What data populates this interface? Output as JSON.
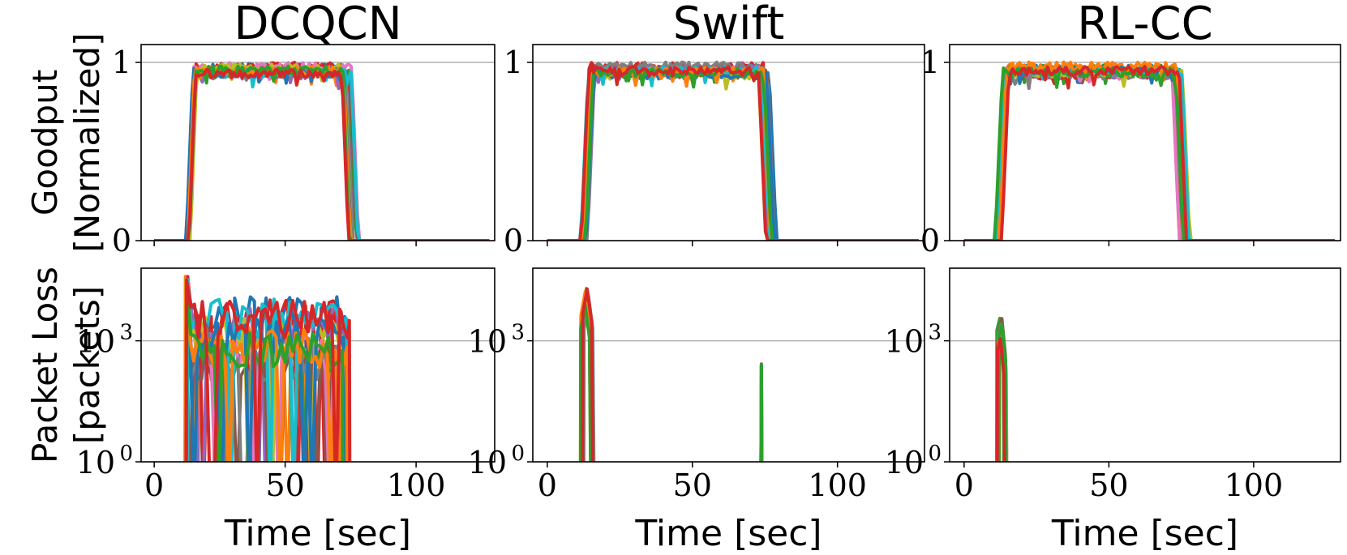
{
  "chart_data": [
    {
      "type": "line",
      "title": "DCQCN",
      "row": "goodput",
      "ylabel": [
        "Goodput",
        "[Normalized]"
      ],
      "xlabel": "",
      "ylim": [
        0,
        1.1
      ],
      "yticks": [
        {
          "label": "0",
          "value": 0
        },
        {
          "label": "1",
          "value": 1
        }
      ],
      "xlim": [
        -5,
        130
      ],
      "xticks": [
        0,
        50,
        100
      ],
      "start": 12,
      "end": 77,
      "series_count": 14
    },
    {
      "type": "line",
      "title": "Swift",
      "row": "goodput",
      "ylabel": [
        "",
        ""
      ],
      "xlabel": "",
      "ylim": [
        0,
        1.1
      ],
      "yticks": [
        {
          "label": "0",
          "value": 0
        },
        {
          "label": "1",
          "value": 1
        }
      ],
      "xlim": [
        -5,
        130
      ],
      "xticks": [
        0,
        50,
        100
      ],
      "start": 12,
      "end": 78,
      "series_count": 14
    },
    {
      "type": "line",
      "title": "RL-CC",
      "row": "goodput",
      "ylabel": [
        "",
        ""
      ],
      "xlabel": "",
      "ylim": [
        0,
        1.1
      ],
      "yticks": [
        {
          "label": "0",
          "value": 0
        },
        {
          "label": "1",
          "value": 1
        }
      ],
      "xlim": [
        -5,
        130
      ],
      "xticks": [
        0,
        50,
        100
      ],
      "start": 11,
      "end": 77,
      "series_count": 14
    },
    {
      "type": "line",
      "title": "",
      "row": "loss",
      "scale": "log",
      "ylabel": [
        "Packet Loss",
        "[packets]"
      ],
      "xlabel": "Time [sec]",
      "ylim_log10": [
        0,
        4.8
      ],
      "yticks": [
        {
          "label": "10",
          "exp": "0",
          "value": 0
        },
        {
          "label": "10",
          "exp": "3",
          "value": 3
        }
      ],
      "xlim": [
        -5,
        130
      ],
      "xticks": [
        0,
        50,
        100
      ],
      "pattern": "dcqcn",
      "series_count": 14
    },
    {
      "type": "line",
      "title": "",
      "row": "loss",
      "scale": "log",
      "ylabel": [
        "",
        ""
      ],
      "xlabel": "Time [sec]",
      "ylim_log10": [
        0,
        4.8
      ],
      "yticks": [
        {
          "label": "10",
          "exp": "0",
          "value": 0
        },
        {
          "label": "10",
          "exp": "3",
          "value": 3
        }
      ],
      "xlim": [
        -5,
        130
      ],
      "xticks": [
        0,
        50,
        100
      ],
      "pattern": "swift",
      "series_count": 14
    },
    {
      "type": "line",
      "title": "",
      "row": "loss",
      "scale": "log",
      "ylabel": [
        "",
        ""
      ],
      "xlabel": "Time [sec]",
      "ylim_log10": [
        0,
        4.8
      ],
      "yticks": [
        {
          "label": "10",
          "exp": "0",
          "value": 0
        },
        {
          "label": "10",
          "exp": "3",
          "value": 3
        }
      ],
      "xlim": [
        -5,
        130
      ],
      "xticks": [
        0,
        50,
        100
      ],
      "pattern": "rlcc",
      "series_count": 14
    }
  ],
  "series_colors": [
    "#1f77b4",
    "#ff7f0e",
    "#2ca02c",
    "#d62728",
    "#9467bd",
    "#8c564b",
    "#e377c2",
    "#7f7f7f",
    "#bcbd22",
    "#17becf",
    "#1f77b4",
    "#ff7f0e",
    "#2ca02c",
    "#d62728"
  ]
}
